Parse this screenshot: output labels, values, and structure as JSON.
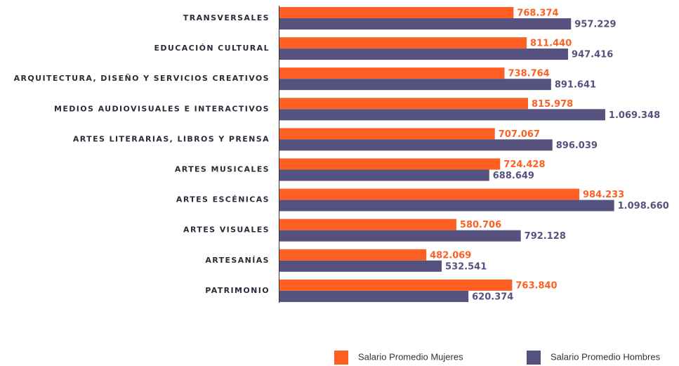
{
  "chart_data": {
    "type": "hbar",
    "categories": [
      "TRANSVERSALES",
      "EDUCACIÓN CULTURAL",
      "ARQUITECTURA, DISEÑO Y SERVICIOS CREATIVOS",
      "MEDIOS AUDIOVISUALES E INTERACTIVOS",
      "ARTES LITERARIAS, LIBROS Y PRENSA",
      "ARTES MUSICALES",
      "ARTES ESCÉNICAS",
      "ARTES VISUALES",
      "ARTESANÍAS",
      "PATRIMONIO"
    ],
    "series": [
      {
        "name": "Salario Promedio Mujeres",
        "color": "#fe5f22",
        "values": [
          768374,
          811440,
          738764,
          815978,
          707067,
          724428,
          984233,
          580706,
          482069,
          763840
        ],
        "value_labels": [
          "768.374",
          "811.440",
          "738.764",
          "815.978",
          "707.067",
          "724.428",
          "984.233",
          "580.706",
          "482.069",
          "763.840"
        ]
      },
      {
        "name": "Salario Promedio Hombres",
        "color": "#55527f",
        "values": [
          957229,
          947416,
          891641,
          1069348,
          896039,
          688649,
          1098660,
          792128,
          532541,
          620374
        ],
        "value_labels": [
          "957.229",
          "947.416",
          "891.641",
          "1.069.348",
          "896.039",
          "688.649",
          "1.098.660",
          "792.128",
          "532.541",
          "620.374"
        ]
      }
    ],
    "xlim": [
      0,
      1300000
    ]
  }
}
